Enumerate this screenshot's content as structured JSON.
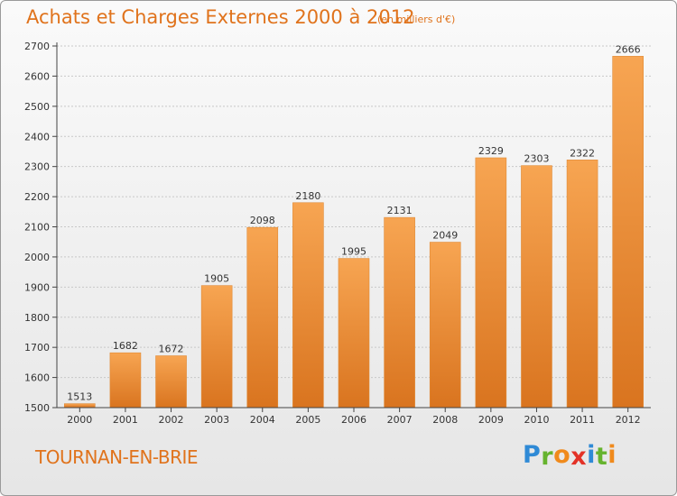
{
  "header": {
    "title": "Achats et Charges Externes 2000 à 2012",
    "unit": "(en milliers d'€)"
  },
  "footer": {
    "town": "TOURNAN-EN-BRIE",
    "logo_letters": [
      "P",
      "r",
      "o",
      "x",
      "i",
      "t",
      "i"
    ],
    "logo_colors": [
      "#2f8ad6",
      "#66b32e",
      "#f08a1c",
      "#e33227",
      "#2f8ad6",
      "#66b32e",
      "#f08a1c"
    ]
  },
  "colors": {
    "bar_top": "#f7a552",
    "bar_bottom": "#d9741f",
    "bar_edge": "#e08a35",
    "title": "#e0731c",
    "axis": "#444444",
    "grid": "#c8c8c8"
  },
  "chart_data": {
    "type": "bar",
    "title": "Achats et Charges Externes 2000 à 2012",
    "subtitle": "(en milliers d'€)",
    "categories": [
      "2000",
      "2001",
      "2002",
      "2003",
      "2004",
      "2005",
      "2006",
      "2007",
      "2008",
      "2009",
      "2010",
      "2011",
      "2012"
    ],
    "values": [
      1513,
      1682,
      1672,
      1905,
      2098,
      2180,
      1995,
      2131,
      2049,
      2329,
      2303,
      2322,
      2666
    ],
    "ylim": [
      1500,
      2700
    ],
    "yticks": [
      1500,
      1600,
      1700,
      1800,
      1900,
      2000,
      2100,
      2200,
      2300,
      2400,
      2500,
      2600,
      2700
    ],
    "grid": true,
    "xlabel": "",
    "ylabel": ""
  }
}
